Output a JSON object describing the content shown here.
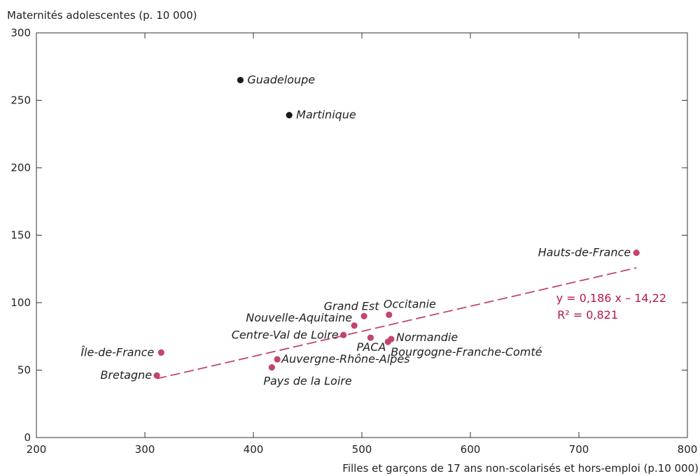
{
  "chart_data": {
    "type": "scatter",
    "ylabel": "Maternités adolescentes (p. 10 000)",
    "xlabel": "Filles et garçons de 17 ans non-scolarisés et hors-emploi (p.10 000)",
    "xlim": [
      200,
      800
    ],
    "ylim": [
      0,
      300
    ],
    "xticks": [
      200,
      300,
      400,
      500,
      600,
      700,
      800
    ],
    "yticks": [
      0,
      50,
      100,
      150,
      200,
      250,
      300
    ],
    "colors": {
      "regression": "#c2456e",
      "overseas": "#1a1a1a",
      "equation": "#b5174f",
      "axes": "#333333"
    },
    "series": [
      {
        "group": "metropolitan",
        "points": [
          {
            "label": "Hauts-de-France",
            "x": 753,
            "y": 137
          },
          {
            "label": "Occitanie",
            "x": 525,
            "y": 91
          },
          {
            "label": "Grand Est",
            "x": 502,
            "y": 90
          },
          {
            "label": "Nouvelle-Aquitaine",
            "x": 493,
            "y": 83
          },
          {
            "label": "Centre-Val de Loire",
            "x": 483,
            "y": 76
          },
          {
            "label": "PACA",
            "x": 508,
            "y": 74
          },
          {
            "label": "Normandie",
            "x": 527,
            "y": 73
          },
          {
            "label": "Bourgogne-Franche-Comté",
            "x": 524,
            "y": 71
          },
          {
            "label": "Île-de-France",
            "x": 315,
            "y": 63
          },
          {
            "label": "Auvergne-Rhône-Alpes",
            "x": 422,
            "y": 58
          },
          {
            "label": "Pays de la Loire",
            "x": 417,
            "y": 52
          },
          {
            "label": "Bretagne",
            "x": 311,
            "y": 46
          }
        ]
      },
      {
        "group": "overseas",
        "points": [
          {
            "label": "Guadeloupe",
            "x": 388,
            "y": 265
          },
          {
            "label": "Martinique",
            "x": 433,
            "y": 239
          }
        ]
      }
    ],
    "regression": {
      "slope": 0.186,
      "intercept": -14.22,
      "x_range": [
        311,
        753
      ],
      "equation": "y = 0,186 x – 14,22",
      "r2": "R² = 0,821"
    }
  }
}
